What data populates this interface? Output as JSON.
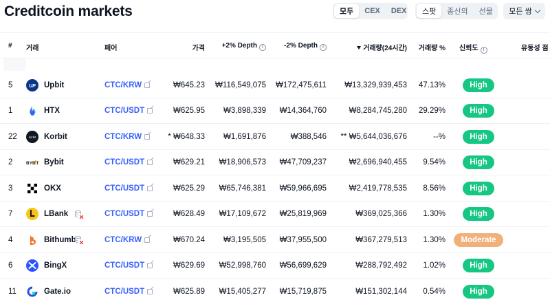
{
  "header": {
    "title": "Creditcoin markets"
  },
  "filters": {
    "type_options": [
      "모두",
      "CEX",
      "DEX"
    ],
    "type_selected": "모두",
    "market_options": [
      "스팟",
      "종신의",
      "선물"
    ],
    "market_selected": "스팟",
    "pair_dropdown": "모든 쌍"
  },
  "columns": {
    "rank": "#",
    "exchange": "거래",
    "pair": "페어",
    "price": "가격",
    "depth_plus": "+2% Depth",
    "depth_minus": "-2% Depth",
    "volume": "거래량(24시간)",
    "volume_pct": "거래량 %",
    "trust": "신뢰도",
    "liquidity": "유동성 점"
  },
  "colors": {
    "high": "#16c784",
    "moderate": "#f0b07a",
    "link": "#3861fb"
  },
  "rows": [
    {
      "rank": "5",
      "exchange": "Upbit",
      "logo": "upbit-logo",
      "pair": "CTC/KRW",
      "price": "₩645.23",
      "depth_plus": "₩116,549,075",
      "depth_minus": "₩172,475,611",
      "volume": "₩13,329,939,453",
      "volume_pct": "47.13%",
      "trust": "High",
      "warning": false
    },
    {
      "rank": "1",
      "exchange": "HTX",
      "logo": "htx-logo",
      "pair": "CTC/USDT",
      "price": "₩625.95",
      "depth_plus": "₩3,898,339",
      "depth_minus": "₩14,364,760",
      "volume": "₩8,284,745,280",
      "volume_pct": "29.29%",
      "trust": "High",
      "warning": false
    },
    {
      "rank": "22",
      "exchange": "Korbit",
      "logo": "korbit-logo",
      "pair": "CTC/KRW",
      "price": "* ₩648.33",
      "depth_plus": "₩1,691,876",
      "depth_minus": "₩388,546",
      "volume": "** ₩5,644,036,676",
      "volume_pct": "--%",
      "trust": "High",
      "warning": false
    },
    {
      "rank": "2",
      "exchange": "Bybit",
      "logo": "bybit-logo",
      "pair": "CTC/USDT",
      "price": "₩629.21",
      "depth_plus": "₩18,906,573",
      "depth_minus": "₩47,709,237",
      "volume": "₩2,696,940,455",
      "volume_pct": "9.54%",
      "trust": "High",
      "warning": false
    },
    {
      "rank": "3",
      "exchange": "OKX",
      "logo": "okx-logo",
      "pair": "CTC/USDT",
      "price": "₩625.29",
      "depth_plus": "₩65,746,381",
      "depth_minus": "₩59,966,695",
      "volume": "₩2,419,778,535",
      "volume_pct": "8.56%",
      "trust": "High",
      "warning": false
    },
    {
      "rank": "7",
      "exchange": "LBank",
      "logo": "lbank-logo",
      "pair": "CTC/USDT",
      "price": "₩628.49",
      "depth_plus": "₩17,109,672",
      "depth_minus": "₩25,819,969",
      "volume": "₩369,025,366",
      "volume_pct": "1.30%",
      "trust": "High",
      "warning": true
    },
    {
      "rank": "4",
      "exchange": "Bithumb",
      "logo": "bithumb-logo",
      "pair": "CTC/KRW",
      "price": "₩670.24",
      "depth_plus": "₩3,195,505",
      "depth_minus": "₩37,955,500",
      "volume": "₩367,279,513",
      "volume_pct": "1.30%",
      "trust": "Moderate",
      "warning": true
    },
    {
      "rank": "6",
      "exchange": "BingX",
      "logo": "bingx-logo",
      "pair": "CTC/USDT",
      "price": "₩629.69",
      "depth_plus": "₩52,998,760",
      "depth_minus": "₩56,699,629",
      "volume": "₩288,792,492",
      "volume_pct": "1.02%",
      "trust": "High",
      "warning": false
    },
    {
      "rank": "11",
      "exchange": "Gate.io",
      "logo": "gateio-logo",
      "pair": "CTC/USDT",
      "price": "₩625.89",
      "depth_plus": "₩15,405,277",
      "depth_minus": "₩15,719,875",
      "volume": "₩151,302,144",
      "volume_pct": "0.54%",
      "trust": "High",
      "warning": false
    }
  ]
}
